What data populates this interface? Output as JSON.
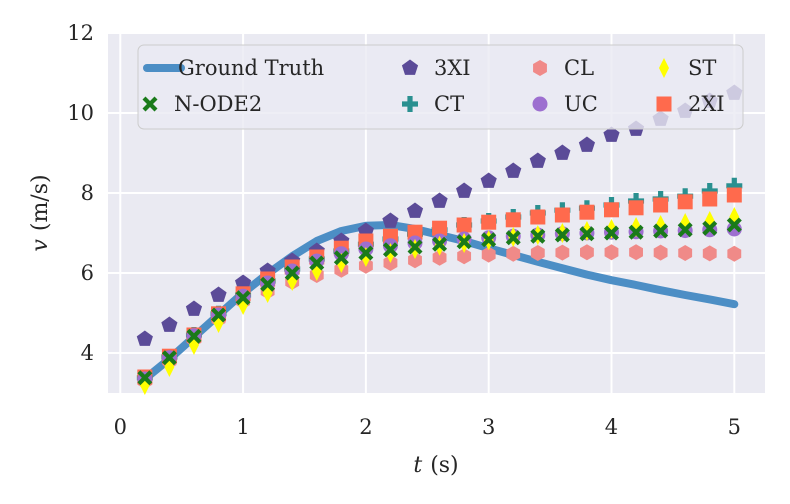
{
  "chart_data": {
    "type": "scatter",
    "xlabel": "t (s)",
    "ylabel": "v (m/s)",
    "xlabel_var": "t",
    "xlabel_unit": "(s)",
    "ylabel_var": "v",
    "ylabel_unit": "(m/s)",
    "xlim": [
      -0.1,
      5.25
    ],
    "ylim": [
      3.0,
      12.0
    ],
    "xticks": [
      0,
      1,
      2,
      3,
      4,
      5
    ],
    "yticks": [
      4,
      6,
      8,
      10,
      12
    ],
    "grid": true,
    "legend_position": "top",
    "x": [
      0.2,
      0.4,
      0.6,
      0.8,
      1.0,
      1.2,
      1.4,
      1.6,
      1.8,
      2.0,
      2.2,
      2.4,
      2.6,
      2.8,
      3.0,
      3.2,
      3.4,
      3.6,
      3.8,
      4.0,
      4.2,
      4.4,
      4.6,
      4.8,
      5.0
    ],
    "series": [
      {
        "name": "Ground Truth",
        "marker": "line",
        "color": "#4c8ec5",
        "values": [
          3.35,
          3.85,
          4.4,
          4.95,
          5.5,
          5.98,
          6.42,
          6.8,
          7.05,
          7.18,
          7.2,
          7.1,
          6.95,
          6.8,
          6.62,
          6.45,
          6.28,
          6.12,
          5.96,
          5.82,
          5.7,
          5.57,
          5.45,
          5.34,
          5.22
        ]
      },
      {
        "name": "3XI",
        "marker": "pentagon",
        "color": "#5b4b98",
        "values": [
          4.35,
          4.7,
          5.1,
          5.45,
          5.75,
          6.05,
          6.3,
          6.55,
          6.8,
          7.05,
          7.3,
          7.55,
          7.8,
          8.05,
          8.3,
          8.55,
          8.8,
          9.0,
          9.2,
          9.45,
          9.6,
          9.85,
          10.05,
          10.3,
          10.5
        ]
      },
      {
        "name": "CL",
        "marker": "hexagon",
        "color": "#f08a88",
        "values": [
          3.3,
          3.8,
          4.35,
          4.85,
          5.3,
          5.55,
          5.78,
          5.95,
          6.08,
          6.18,
          6.25,
          6.32,
          6.38,
          6.42,
          6.46,
          6.48,
          6.5,
          6.51,
          6.52,
          6.52,
          6.52,
          6.51,
          6.5,
          6.49,
          6.48
        ]
      },
      {
        "name": "ST",
        "marker": "thin_diamond",
        "color": "#ffff00",
        "values": [
          3.2,
          3.65,
          4.2,
          4.75,
          5.2,
          5.5,
          5.8,
          6.05,
          6.25,
          6.4,
          6.5,
          6.6,
          6.68,
          6.75,
          6.82,
          6.9,
          6.95,
          7.0,
          7.05,
          7.1,
          7.15,
          7.2,
          7.25,
          7.3,
          7.4
        ]
      },
      {
        "name": "N-ODE2",
        "marker": "x",
        "color": "#1a7a1a",
        "values": [
          3.38,
          3.88,
          4.42,
          4.95,
          5.38,
          5.72,
          6.0,
          6.25,
          6.38,
          6.5,
          6.58,
          6.65,
          6.72,
          6.78,
          6.83,
          6.88,
          6.92,
          6.95,
          6.98,
          7.0,
          7.02,
          7.05,
          7.08,
          7.12,
          7.2
        ]
      },
      {
        "name": "CT",
        "marker": "plus",
        "color": "#2a9090",
        "values": [
          3.38,
          3.9,
          4.45,
          4.98,
          5.45,
          5.8,
          6.1,
          6.35,
          6.55,
          6.72,
          6.85,
          6.97,
          7.08,
          7.2,
          7.3,
          7.4,
          7.5,
          7.57,
          7.62,
          7.7,
          7.8,
          7.85,
          7.92,
          8.05,
          8.18
        ]
      },
      {
        "name": "UC",
        "marker": "circle",
        "color": "#9d6fd0",
        "values": [
          3.35,
          3.88,
          4.43,
          4.95,
          5.42,
          5.75,
          6.05,
          6.3,
          6.48,
          6.6,
          6.68,
          6.75,
          6.8,
          6.85,
          6.88,
          6.92,
          6.95,
          6.98,
          7.0,
          7.02,
          7.03,
          7.05,
          7.06,
          7.08,
          7.1
        ]
      },
      {
        "name": "2XI",
        "marker": "square",
        "color": "#ff6a4d",
        "values": [
          3.4,
          3.92,
          4.45,
          4.98,
          5.48,
          5.85,
          6.15,
          6.4,
          6.62,
          6.8,
          6.92,
          7.02,
          7.12,
          7.2,
          7.27,
          7.33,
          7.4,
          7.45,
          7.52,
          7.58,
          7.63,
          7.7,
          7.78,
          7.85,
          7.95
        ]
      }
    ],
    "legend_order": [
      "Ground Truth",
      "3XI",
      "CL",
      "ST",
      "N-ODE2",
      "CT",
      "UC",
      "2XI"
    ]
  }
}
